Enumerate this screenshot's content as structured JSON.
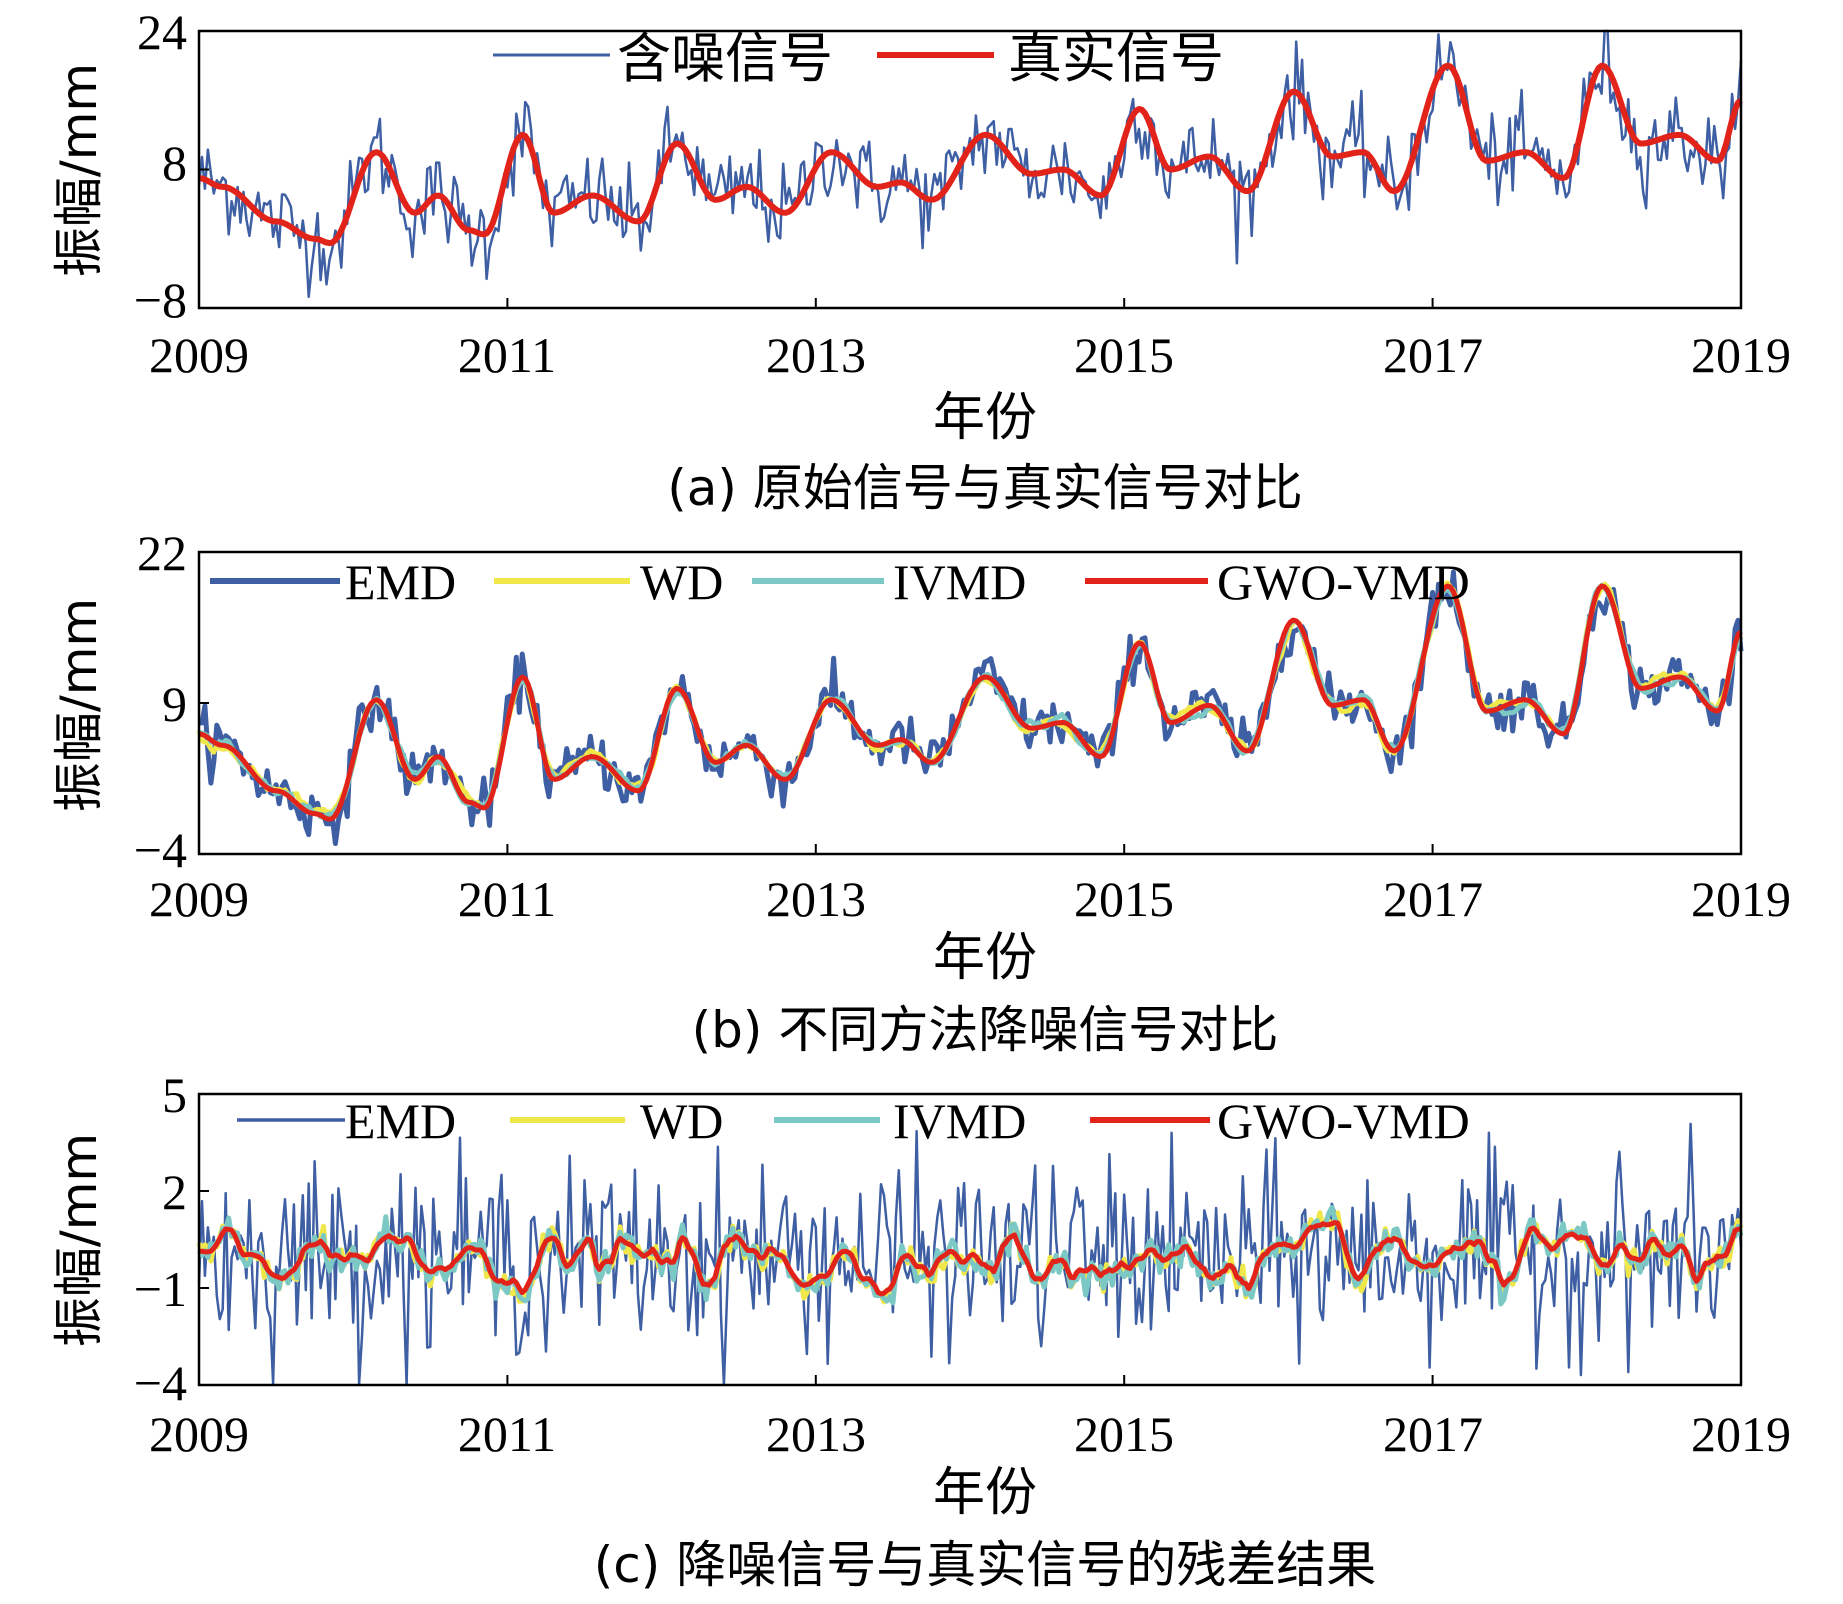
{
  "colors": {
    "noisy": "#3e5fa3",
    "true": "#e2231a",
    "emd": "#3e5fa3",
    "wd": "#f0e84a",
    "ivmd": "#7cc8c4",
    "gwo": "#e2231a"
  },
  "chart_data": [
    {
      "type": "line",
      "panel_id": "a",
      "caption": "(a) 原始信号与真实信号对比",
      "xlabel": "年份",
      "ylabel": "振幅/mm",
      "xlim": [
        2009,
        2019
      ],
      "ylim": [
        -8,
        24
      ],
      "xticks": [
        "2009",
        "2011",
        "2013",
        "2015",
        "2017",
        "2019"
      ],
      "yticks": [
        "24",
        "8",
        "−8"
      ],
      "legend_position": "top",
      "series": [
        {
          "name": "含噪信号",
          "key": "noisy",
          "style": "noisy around true signal, noise amplitude ~3 mm"
        },
        {
          "name": "真实信号",
          "key": "true",
          "x": [
            2009.0,
            2009.15,
            2009.5,
            2009.75,
            2009.85,
            2010.15,
            2010.4,
            2010.55,
            2010.75,
            2010.85,
            2011.1,
            2011.3,
            2011.55,
            2011.85,
            2012.1,
            2012.35,
            2012.55,
            2012.8,
            2013.1,
            2013.4,
            2013.55,
            2013.75,
            2014.1,
            2014.4,
            2014.6,
            2014.85,
            2015.1,
            2015.3,
            2015.55,
            2015.8,
            2016.1,
            2016.35,
            2016.55,
            2016.75,
            2017.1,
            2017.35,
            2017.6,
            2017.85,
            2018.1,
            2018.35,
            2018.6,
            2018.85,
            2019.0
          ],
          "y": [
            7,
            6,
            2,
            0,
            -0.5,
            10,
            3,
            5,
            1,
            0.5,
            12,
            3,
            5,
            2,
            11,
            4.5,
            6,
            3,
            10,
            6,
            6.5,
            4.5,
            12,
            7.5,
            8,
            5,
            15,
            8,
            9.5,
            5.5,
            17,
            9.5,
            10,
            5.5,
            20,
            9,
            10,
            7,
            20,
            11,
            12,
            9,
            16
          ]
        }
      ]
    },
    {
      "type": "line",
      "panel_id": "b",
      "caption": "(b) 不同方法降噪信号对比",
      "xlabel": "年份",
      "ylabel": "振幅/mm",
      "xlim": [
        2009,
        2019
      ],
      "ylim": [
        -4,
        22
      ],
      "xticks": [
        "2009",
        "2011",
        "2013",
        "2015",
        "2017",
        "2019"
      ],
      "yticks": [
        "22",
        "9",
        "−4"
      ],
      "legend_position": "top",
      "series": [
        {
          "name": "EMD",
          "key": "emd"
        },
        {
          "name": "WD",
          "key": "wd"
        },
        {
          "name": "IVMD",
          "key": "ivmd"
        },
        {
          "name": "GWO-VMD",
          "key": "gwo"
        }
      ]
    },
    {
      "type": "line",
      "panel_id": "c",
      "caption": "(c) 降噪信号与真实信号的残差结果",
      "xlabel": "年份",
      "ylabel": "振幅/mm",
      "xlim": [
        2009,
        2019
      ],
      "ylim": [
        -4,
        5
      ],
      "xticks": [
        "2009",
        "2011",
        "2013",
        "2015",
        "2017",
        "2019"
      ],
      "yticks": [
        "5",
        "2",
        "−1",
        "−4"
      ],
      "legend_position": "top",
      "series": [
        {
          "name": "EMD",
          "key": "emd",
          "style": "residual noise, range ~-4 to 4.5"
        },
        {
          "name": "WD",
          "key": "wd",
          "style": "residual, range ~-1.5 to 1"
        },
        {
          "name": "IVMD",
          "key": "ivmd",
          "style": "residual, range ~-1.5 to 1"
        },
        {
          "name": "GWO-VMD",
          "key": "gwo",
          "style": "residual, range ~-1.2 to 0.8"
        }
      ]
    }
  ]
}
